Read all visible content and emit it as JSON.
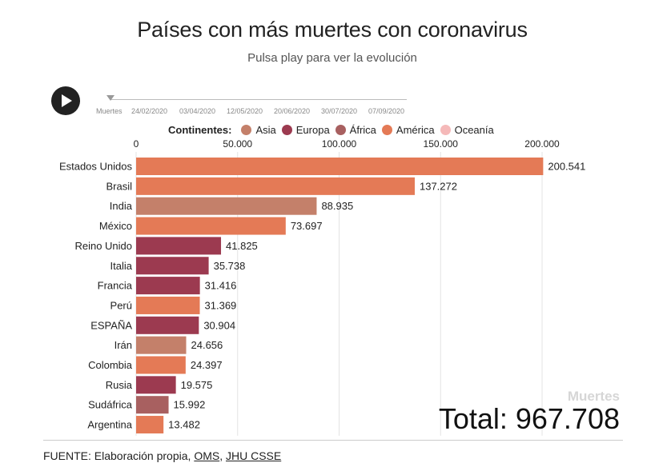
{
  "header": {
    "title": "Países con más muertes con coronavirus",
    "subtitle": "Pulsa play para ver la evolución"
  },
  "timeline": {
    "labels": [
      "Muertes",
      "24/02/2020",
      "03/04/2020",
      "12/05/2020",
      "20/06/2020",
      "30/07/2020",
      "07/09/2020"
    ]
  },
  "legend": {
    "title": "Continentes:",
    "items": [
      {
        "label": "Asia",
        "color": "#c4806a"
      },
      {
        "label": "Europa",
        "color": "#9c3a50"
      },
      {
        "label": "África",
        "color": "#a86060"
      },
      {
        "label": "América",
        "color": "#e47a56"
      },
      {
        "label": "Oceanía",
        "color": "#f5b9b9"
      }
    ]
  },
  "chart_data": {
    "type": "bar",
    "orientation": "horizontal",
    "categories": [
      "Estados Unidos",
      "Brasil",
      "India",
      "México",
      "Reino Unido",
      "Italia",
      "Francia",
      "Perú",
      "ESPAÑA",
      "Irán",
      "Colombia",
      "Rusia",
      "Sudáfrica",
      "Argentina"
    ],
    "values": [
      200541,
      137272,
      88935,
      73697,
      41825,
      35738,
      31416,
      31369,
      30904,
      24656,
      24397,
      19575,
      15992,
      13482
    ],
    "value_labels": [
      "200.541",
      "137.272",
      "88.935",
      "73.697",
      "41.825",
      "35.738",
      "31.416",
      "31.369",
      "30.904",
      "24.656",
      "24.397",
      "19.575",
      "15.992",
      "13.482"
    ],
    "continents": [
      "América",
      "América",
      "Asia",
      "América",
      "Europa",
      "Europa",
      "Europa",
      "América",
      "Europa",
      "Asia",
      "América",
      "Europa",
      "África",
      "América"
    ],
    "x_ticks": [
      0,
      50000,
      100000,
      150000,
      200000
    ],
    "x_tick_labels": [
      "0",
      "50.000",
      "100.000",
      "150.000",
      "200.000"
    ],
    "xlim": [
      0,
      200000
    ],
    "grid": true,
    "axis_position": "top",
    "legend_position": "top"
  },
  "watermark": "Muertes",
  "total": "Total: 967.708",
  "footer": {
    "prefix": "FUENTE: Elaboración propia, ",
    "link1": "OMS",
    "separator": ", ",
    "link2": "JHU CSSE"
  }
}
